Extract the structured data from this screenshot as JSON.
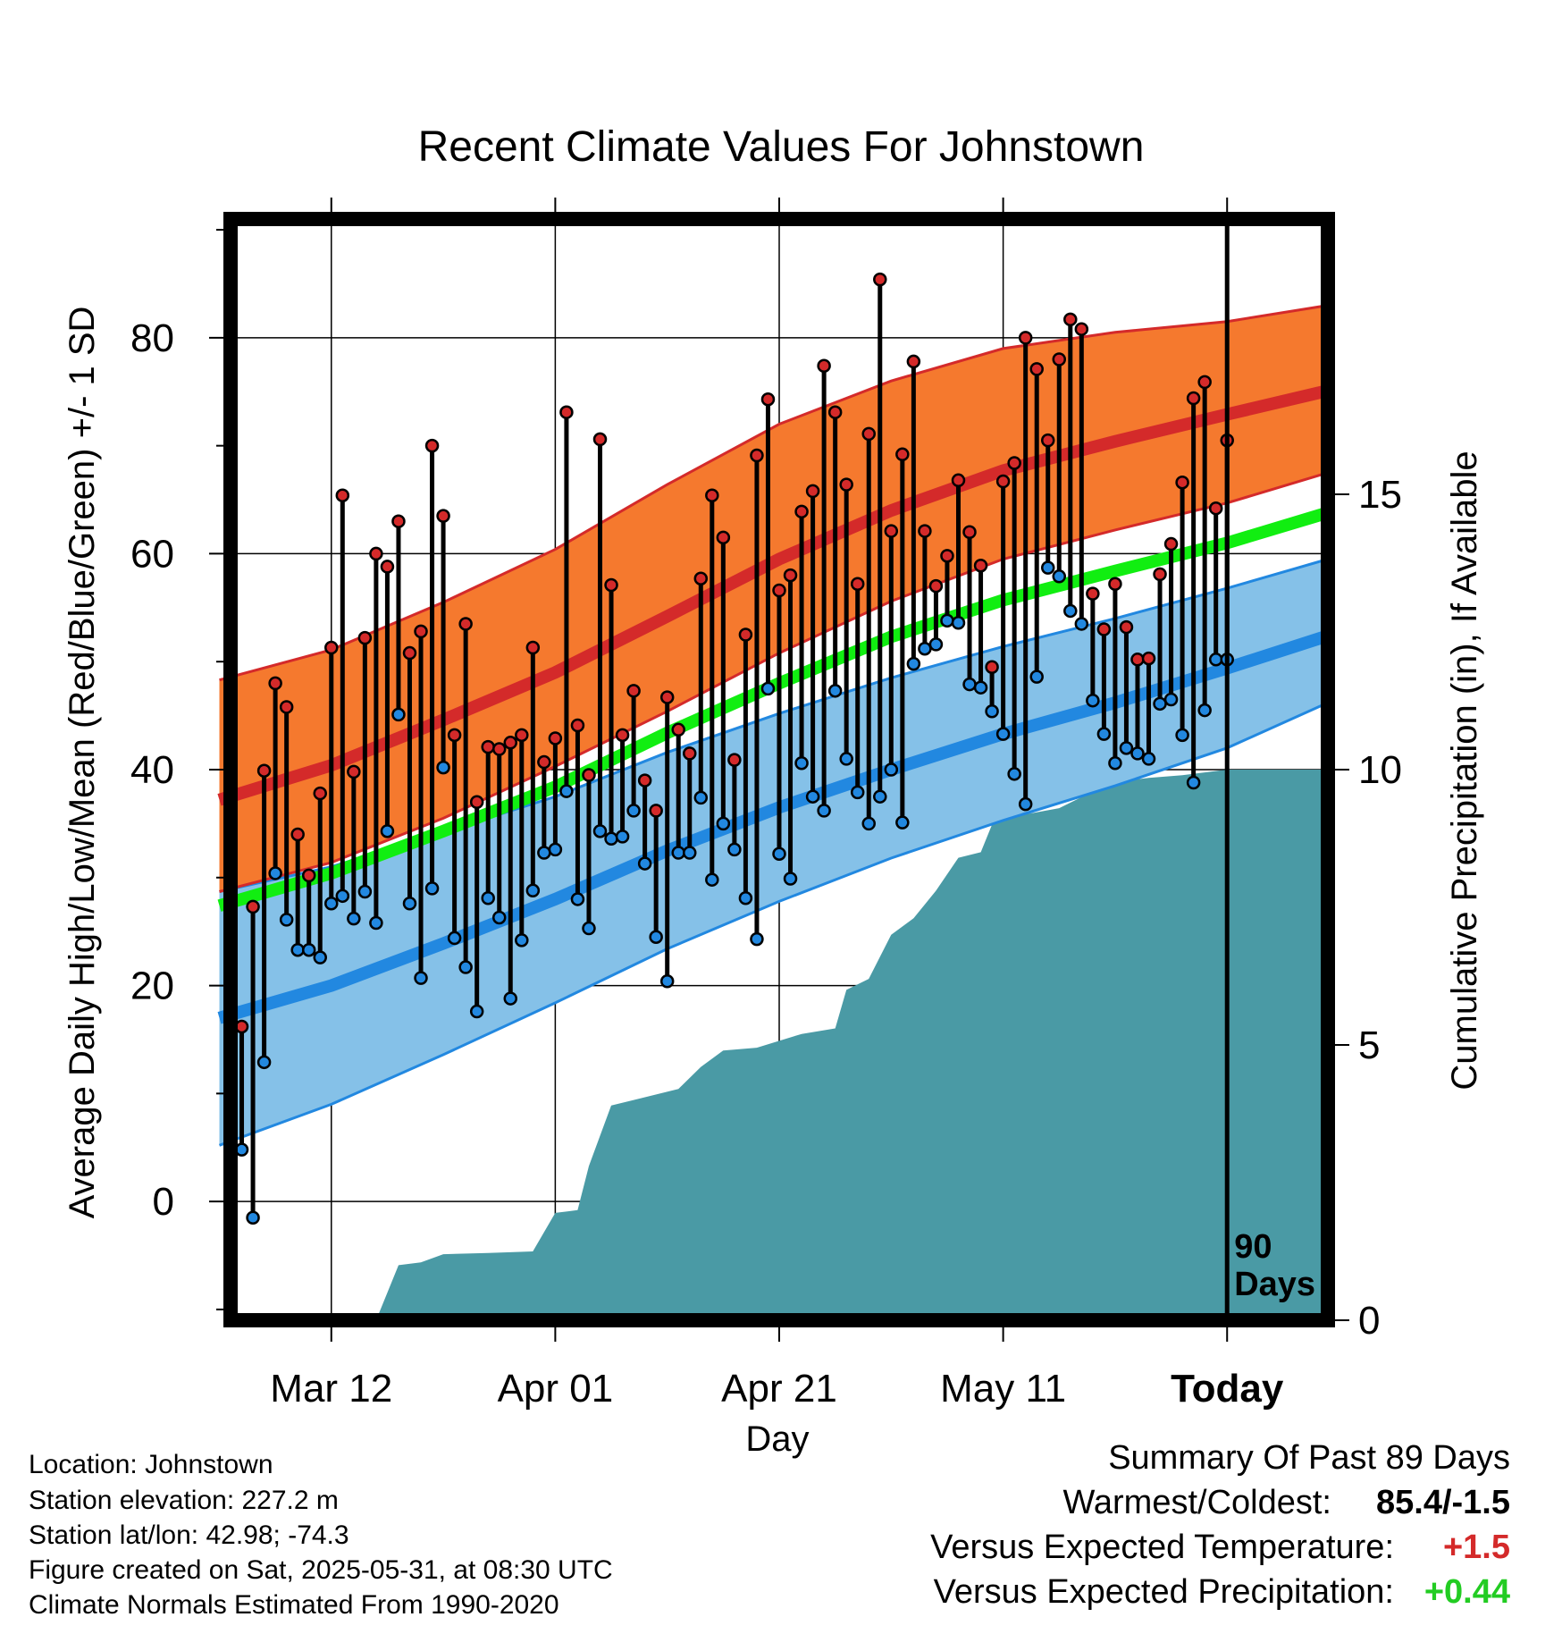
{
  "chart_data": {
    "type": "line",
    "title": "Recent Climate Values For Johnstown",
    "xlabel": "Day",
    "ylabel": "Average Daily High/Low/Mean (Red/Blue/Green) +/- 1 SD",
    "y2label": "Cumulative Precipitation (in), If Available",
    "ylim": [
      -11,
      91
    ],
    "y2lim": [
      0,
      20
    ],
    "xlim": [
      -89,
      9
    ],
    "yticks": [
      0,
      20,
      40,
      60,
      80
    ],
    "y2ticks": [
      0,
      5,
      10,
      15
    ],
    "xticks": [
      {
        "x": -80,
        "label": "Mar 12"
      },
      {
        "x": -60,
        "label": "Apr 01"
      },
      {
        "x": -40,
        "label": "Apr 21"
      },
      {
        "x": -20,
        "label": "May 11"
      },
      {
        "x": 0,
        "label": "Today"
      }
    ],
    "today_label": [
      "90",
      "Days"
    ],
    "grid": true,
    "normals": {
      "x": [
        -90,
        -80,
        -70,
        -60,
        -50,
        -40,
        -30,
        -20,
        -10,
        0,
        9
      ],
      "high": [
        37.2,
        40.4,
        44.6,
        49.0,
        54.2,
        59.5,
        64.0,
        67.7,
        70.4,
        72.9,
        75.1
      ],
      "high_upper": [
        48.3,
        51.1,
        55.5,
        60.4,
        66.4,
        72.0,
        76.0,
        79.0,
        80.5,
        81.5,
        83.0
      ],
      "high_lower": [
        28.7,
        31.4,
        35.5,
        40.3,
        45.4,
        50.8,
        55.6,
        59.5,
        62.2,
        64.7,
        67.5
      ],
      "mean": [
        27.4,
        30.4,
        34.3,
        38.4,
        43.4,
        48.0,
        52.3,
        55.7,
        58.4,
        61.0,
        63.8
      ],
      "low": [
        17.0,
        20.0,
        23.9,
        28.0,
        32.5,
        36.5,
        40.0,
        43.3,
        46.2,
        49.4,
        52.4
      ],
      "low_upper": [
        28.7,
        31.0,
        34.2,
        37.5,
        41.6,
        45.2,
        48.5,
        51.4,
        54.0,
        56.8,
        59.5
      ],
      "low_lower": [
        5.2,
        9.0,
        13.6,
        18.4,
        23.4,
        27.8,
        31.8,
        35.3,
        38.5,
        42.0,
        46.2
      ]
    },
    "series": [
      {
        "name": "High",
        "color": "#d42a2a",
        "values": [
          16.2,
          27.3,
          39.9,
          48.0,
          45.8,
          34.0,
          30.2,
          37.8,
          51.3,
          65.4,
          39.8,
          52.2,
          60.0,
          58.8,
          63.0,
          50.8,
          52.8,
          70.0,
          63.5,
          43.2,
          53.5,
          37.0,
          42.1,
          41.9,
          42.5,
          43.2,
          51.3,
          40.7,
          42.9,
          73.1,
          44.1,
          39.5,
          70.6,
          57.1,
          43.2,
          47.3,
          39.0,
          36.2,
          46.7,
          43.7,
          41.5,
          57.7,
          65.4,
          61.5,
          40.9,
          52.5,
          69.1,
          74.3,
          56.6,
          58.0,
          63.9,
          65.8,
          77.4,
          73.1,
          66.4,
          57.2,
          71.1,
          85.4,
          62.1,
          69.2,
          77.8,
          62.1,
          57.0,
          59.8,
          66.8,
          62.0,
          58.9,
          49.5,
          66.7,
          68.4,
          80.0,
          77.1,
          70.5,
          78.0,
          81.7,
          80.8,
          56.3,
          53.0,
          57.2,
          53.2,
          50.2,
          50.3,
          58.1,
          60.9,
          66.6,
          74.4,
          75.9,
          64.2,
          70.5
        ]
      },
      {
        "name": "Low",
        "color": "#2288e0",
        "values": [
          4.8,
          -1.5,
          12.9,
          30.4,
          26.1,
          23.3,
          23.3,
          22.6,
          27.6,
          28.3,
          26.2,
          28.7,
          25.8,
          34.3,
          45.1,
          27.6,
          20.7,
          29.0,
          40.2,
          24.4,
          21.7,
          17.6,
          28.1,
          26.3,
          18.8,
          24.2,
          28.8,
          32.3,
          32.6,
          38.0,
          28.0,
          25.3,
          34.3,
          33.6,
          33.8,
          36.2,
          31.3,
          24.5,
          20.4,
          32.3,
          32.3,
          37.4,
          29.8,
          35.0,
          32.6,
          28.1,
          24.3,
          47.5,
          32.2,
          29.9,
          40.6,
          37.5,
          36.2,
          47.3,
          41.0,
          37.9,
          35.0,
          37.5,
          40.0,
          35.1,
          49.8,
          51.2,
          51.6,
          53.8,
          53.6,
          47.9,
          47.6,
          45.4,
          43.3,
          39.6,
          36.8,
          48.6,
          58.7,
          57.9,
          54.7,
          53.5,
          46.4,
          43.3,
          40.6,
          42.0,
          41.5,
          41.0,
          46.1,
          46.5,
          43.2,
          38.8,
          45.5,
          50.2,
          50.2
        ]
      },
      {
        "name": "Precipitation",
        "color": "#4a9aa5",
        "x": [
          -89,
          -76,
          -74,
          -72,
          -70,
          -66,
          -62,
          -60,
          -58,
          -57,
          -56,
          -55,
          -53,
          -49,
          -47,
          -45,
          -42,
          -38,
          -35,
          -34,
          -32,
          -30,
          -28,
          -26,
          -24,
          -22,
          -21,
          -19,
          -15,
          -12,
          -9,
          -7,
          -4,
          0,
          9
        ],
        "values": [
          0,
          0,
          1.0,
          1.05,
          1.2,
          1.22,
          1.25,
          1.95,
          2.0,
          2.8,
          3.35,
          3.9,
          4.0,
          4.2,
          4.6,
          4.9,
          4.95,
          5.2,
          5.3,
          6.0,
          6.2,
          7.0,
          7.3,
          7.8,
          8.4,
          8.5,
          9.0,
          9.15,
          9.3,
          9.6,
          9.8,
          9.85,
          9.9,
          10.0,
          10.0
        ]
      }
    ]
  },
  "footer": {
    "lines": [
      "Location: Johnstown",
      "Station elevation: 227.2 m",
      "Station lat/lon: 42.98; -74.3",
      "Figure created on Sat, 2025-05-31, at 08:30 UTC",
      "Climate Normals Estimated From 1990-2020"
    ]
  },
  "summary": {
    "title": "Summary Of Past 89 Days",
    "rows": [
      {
        "label": "Warmest/Coldest:",
        "value": "85.4/-1.5",
        "color": "#000000"
      },
      {
        "label": "Versus Expected Temperature:",
        "value": "+1.5",
        "color": "#d42a2a"
      },
      {
        "label": "Versus Expected Precipitation:",
        "value": "+0.44",
        "color": "#22cc22"
      }
    ]
  }
}
